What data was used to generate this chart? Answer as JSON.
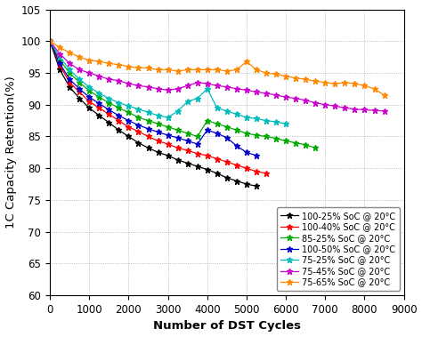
{
  "title": "",
  "xlabel": "Number of DST Cycles",
  "ylabel": "1C Capacity Retention(%)",
  "xlim": [
    0,
    9000
  ],
  "ylim": [
    60,
    105
  ],
  "yticks": [
    60,
    65,
    70,
    75,
    80,
    85,
    90,
    95,
    100,
    105
  ],
  "xticks": [
    0,
    1000,
    2000,
    3000,
    4000,
    5000,
    6000,
    7000,
    8000,
    9000
  ],
  "series": [
    {
      "label": "100-25% SoC @ 20°C",
      "color": "#000000",
      "x": [
        0,
        250,
        500,
        750,
        1000,
        1250,
        1500,
        1750,
        2000,
        2250,
        2500,
        2750,
        3000,
        3250,
        3500,
        3750,
        4000,
        4250,
        4500,
        4750,
        5000,
        5250
      ],
      "y": [
        100,
        95.5,
        92.8,
        91.0,
        89.5,
        88.3,
        87.2,
        86.0,
        85.0,
        84.0,
        83.2,
        82.5,
        82.0,
        81.3,
        80.8,
        80.3,
        79.8,
        79.2,
        78.5,
        78.0,
        77.5,
        77.2
      ]
    },
    {
      "label": "100-40% SoC @ 20°C",
      "color": "#ff0000",
      "x": [
        0,
        250,
        500,
        750,
        1000,
        1250,
        1500,
        1750,
        2000,
        2250,
        2500,
        2750,
        3000,
        3250,
        3500,
        3750,
        4000,
        4250,
        4500,
        4750,
        5000,
        5250,
        5500
      ],
      "y": [
        100,
        96.2,
        93.5,
        92.0,
        90.5,
        89.5,
        88.5,
        87.5,
        86.5,
        85.8,
        85.0,
        84.3,
        83.8,
        83.2,
        82.8,
        82.3,
        82.0,
        81.5,
        81.0,
        80.5,
        80.0,
        79.5,
        79.2
      ]
    },
    {
      "label": "85-25% SoC @ 20°C",
      "color": "#00aa00",
      "x": [
        0,
        250,
        500,
        750,
        1000,
        1250,
        1500,
        1750,
        2000,
        2250,
        2500,
        2750,
        3000,
        3250,
        3500,
        3750,
        4000,
        4250,
        4500,
        4750,
        5000,
        5250,
        5500,
        5750,
        6000,
        6250,
        6500,
        6750
      ],
      "y": [
        100,
        97.0,
        95.0,
        93.5,
        92.2,
        91.2,
        90.3,
        89.5,
        88.8,
        88.0,
        87.5,
        87.0,
        86.5,
        86.0,
        85.5,
        85.0,
        87.5,
        87.0,
        86.5,
        86.0,
        85.5,
        85.2,
        85.0,
        84.7,
        84.3,
        84.0,
        83.7,
        83.2
      ]
    },
    {
      "label": "100-50% SoC @ 20°C",
      "color": "#0000cc",
      "x": [
        0,
        250,
        500,
        750,
        1000,
        1250,
        1500,
        1750,
        2000,
        2250,
        2500,
        2750,
        3000,
        3250,
        3500,
        3750,
        4000,
        4250,
        4500,
        4750,
        5000,
        5250
      ],
      "y": [
        100,
        96.5,
        94.0,
        92.5,
        91.2,
        90.2,
        89.2,
        88.3,
        87.5,
        86.8,
        86.2,
        85.7,
        85.2,
        84.8,
        84.3,
        83.8,
        86.0,
        85.5,
        84.8,
        83.5,
        82.5,
        82.0
      ]
    },
    {
      "label": "75-25% SoC @ 20°C",
      "color": "#00bbbb",
      "x": [
        0,
        250,
        500,
        750,
        1000,
        1250,
        1500,
        1750,
        2000,
        2250,
        2500,
        2750,
        3000,
        3250,
        3500,
        3750,
        4000,
        4250,
        4500,
        4750,
        5000,
        5250,
        5500,
        5750,
        6000
      ],
      "y": [
        100,
        97.5,
        95.5,
        94.0,
        92.8,
        91.8,
        91.0,
        90.3,
        89.8,
        89.3,
        88.8,
        88.3,
        88.0,
        89.0,
        90.5,
        91.0,
        92.5,
        89.5,
        89.0,
        88.5,
        88.0,
        87.8,
        87.5,
        87.3,
        87.0
      ]
    },
    {
      "label": "75-45% SoC @ 20°C",
      "color": "#cc00cc",
      "x": [
        0,
        250,
        500,
        750,
        1000,
        1250,
        1500,
        1750,
        2000,
        2250,
        2500,
        2750,
        3000,
        3250,
        3500,
        3750,
        4000,
        4250,
        4500,
        4750,
        5000,
        5250,
        5500,
        5750,
        6000,
        6250,
        6500,
        6750,
        7000,
        7250,
        7500,
        7750,
        8000,
        8250,
        8500
      ],
      "y": [
        100,
        98.0,
        96.5,
        95.5,
        95.0,
        94.5,
        94.0,
        93.8,
        93.3,
        93.0,
        92.8,
        92.5,
        92.3,
        92.5,
        93.0,
        93.5,
        93.3,
        93.0,
        92.8,
        92.5,
        92.3,
        92.0,
        91.8,
        91.5,
        91.2,
        91.0,
        90.7,
        90.3,
        90.0,
        89.8,
        89.5,
        89.3,
        89.2,
        89.1,
        89.0
      ]
    },
    {
      "label": "75-65% SoC @ 20°C",
      "color": "#ff8800",
      "x": [
        0,
        250,
        500,
        750,
        1000,
        1250,
        1500,
        1750,
        2000,
        2250,
        2500,
        2750,
        3000,
        3250,
        3500,
        3750,
        4000,
        4250,
        4500,
        4750,
        5000,
        5250,
        5500,
        5750,
        6000,
        6250,
        6500,
        6750,
        7000,
        7250,
        7500,
        7750,
        8000,
        8250,
        8500
      ],
      "y": [
        100,
        99.0,
        98.2,
        97.5,
        97.0,
        96.8,
        96.5,
        96.3,
        96.0,
        95.8,
        95.8,
        95.5,
        95.5,
        95.3,
        95.5,
        95.5,
        95.5,
        95.5,
        95.3,
        95.5,
        96.8,
        95.5,
        95.0,
        94.8,
        94.5,
        94.2,
        94.0,
        93.7,
        93.5,
        93.3,
        93.5,
        93.3,
        93.0,
        92.5,
        91.5
      ]
    }
  ],
  "background_color": "#ffffff",
  "grid_color": "#aaaaaa",
  "legend_fontsize": 7.0,
  "axis_fontsize": 9.5,
  "tick_fontsize": 8.5
}
